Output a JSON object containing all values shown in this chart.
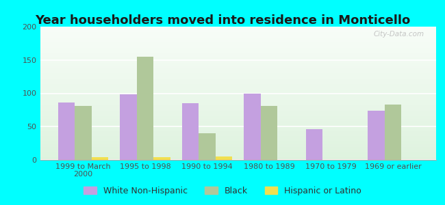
{
  "title": "Year householders moved into residence in Monticello",
  "categories": [
    "1999 to March\n2000",
    "1995 to 1998",
    "1990 to 1994",
    "1980 to 1989",
    "1970 to 1979",
    "1969 or earlier"
  ],
  "white_non_hispanic": [
    86,
    98,
    85,
    100,
    46,
    74
  ],
  "black": [
    81,
    155,
    40,
    81,
    0,
    83
  ],
  "hispanic_or_latino": [
    4,
    4,
    5,
    0,
    0,
    0
  ],
  "bar_color_white": "#c4a0e0",
  "bar_color_black": "#b0c89a",
  "bar_color_hispanic": "#f0e050",
  "background_outer": "#00ffff",
  "ylim": [
    0,
    200
  ],
  "yticks": [
    0,
    50,
    100,
    150,
    200
  ],
  "watermark": "City-Data.com",
  "title_fontsize": 13,
  "legend_fontsize": 9,
  "tick_fontsize": 8
}
